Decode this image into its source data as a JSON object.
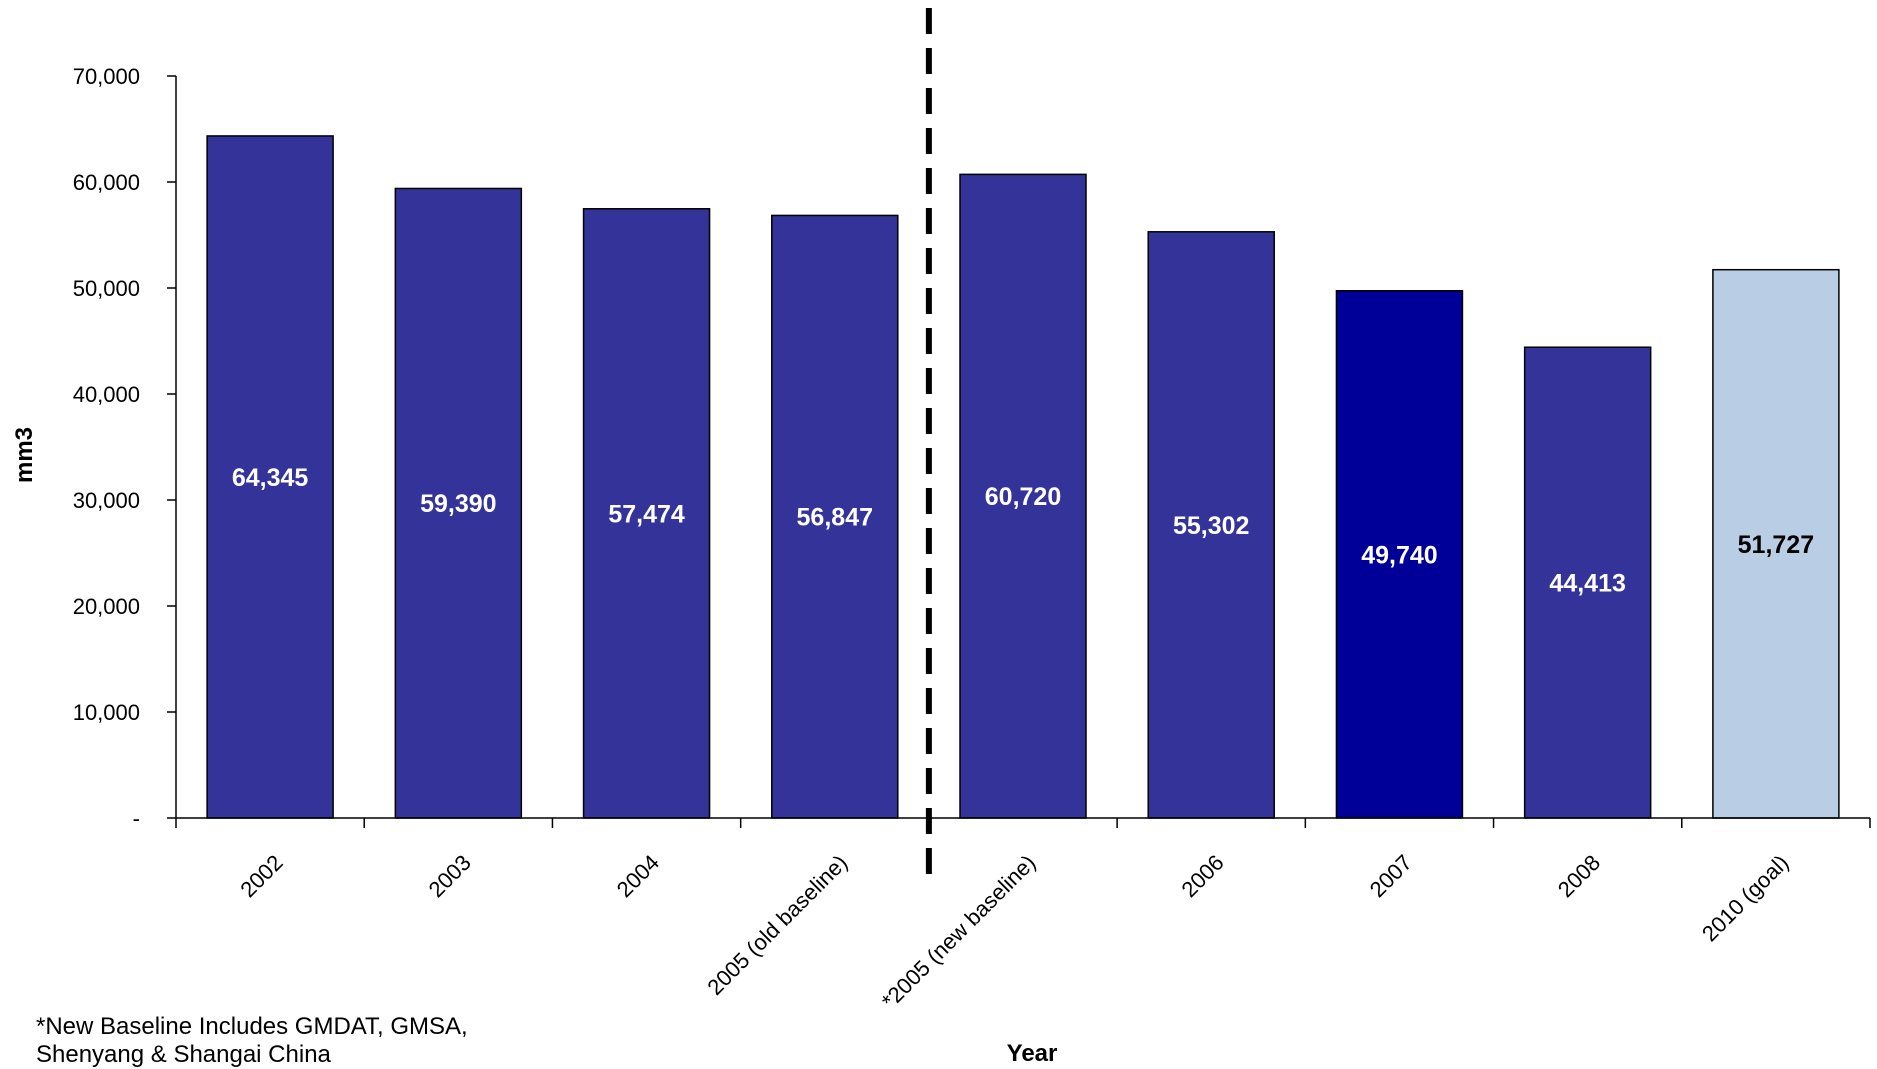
{
  "chart_data": {
    "type": "bar",
    "title": "",
    "xlabel": "Year",
    "ylabel": "mm3",
    "ylim": [
      0,
      70000
    ],
    "yticks": [
      0,
      10000,
      20000,
      30000,
      40000,
      50000,
      60000,
      70000
    ],
    "ytick_labels": [
      "-",
      "10,000",
      "20,000",
      "30,000",
      "40,000",
      "50,000",
      "60,000",
      "70,000"
    ],
    "grid": false,
    "legend": "none",
    "categories": [
      "2002",
      "2003",
      "2004",
      "2005 (old baseline)",
      "*2005 (new baseline)",
      "2006",
      "2007",
      "2008",
      "2010 (goal)"
    ],
    "values": [
      64345,
      59390,
      57474,
      56847,
      60720,
      55302,
      49740,
      44413,
      51727
    ],
    "data_labels": [
      "64,345",
      "59,390",
      "57,474",
      "56,847",
      "60,720",
      "55,302",
      "49,740",
      "44,413",
      "51,727"
    ],
    "bar_colors": [
      "#333399",
      "#333399",
      "#333399",
      "#333399",
      "#333399",
      "#333399",
      "#000099",
      "#333399",
      "#B9CDE5"
    ],
    "label_colors": [
      "#ffffff",
      "#ffffff",
      "#ffffff",
      "#ffffff",
      "#ffffff",
      "#ffffff",
      "#ffffff",
      "#ffffff",
      "#000000"
    ],
    "divider": {
      "style": "dashed",
      "color": "#000000",
      "between_categories": [
        "2005 (old baseline)",
        "*2005 (new baseline)"
      ]
    },
    "footnote_lines": [
      "*New Baseline Includes GMDAT, GMSA,",
      "Shenyang & Shangai China"
    ]
  }
}
